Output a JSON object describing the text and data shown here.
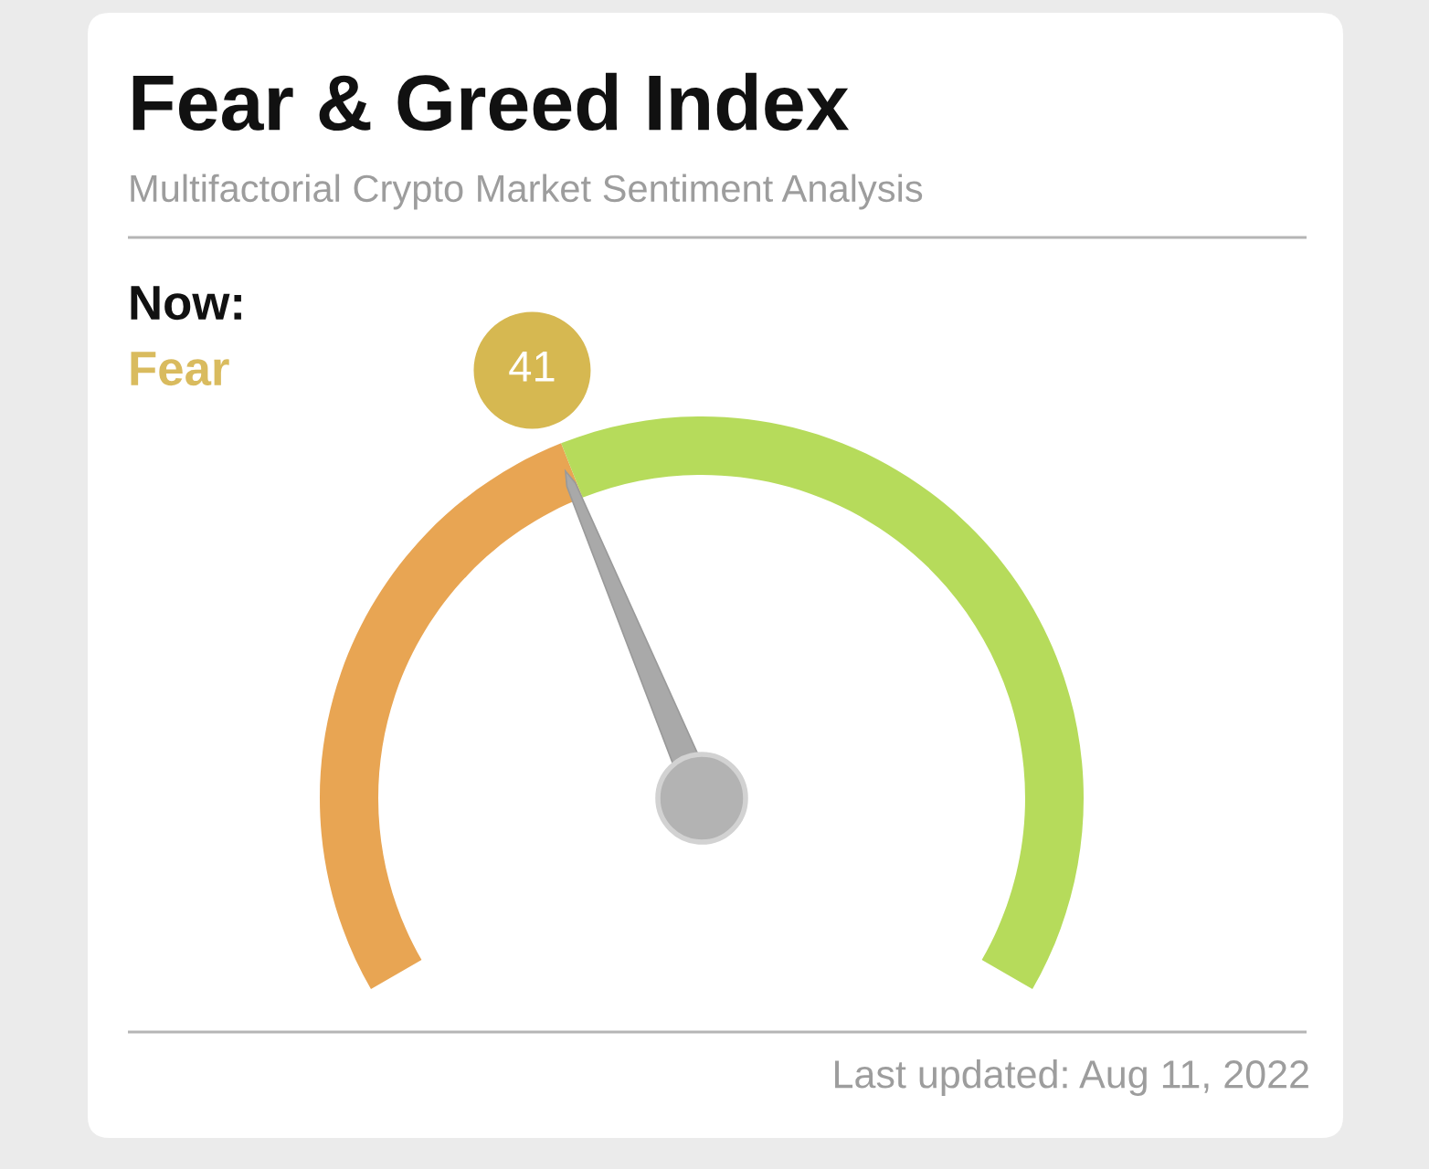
{
  "chart_data": {
    "type": "donut",
    "title": "Fear & Greed Index",
    "subtitle": "Multifactorial Crypto Market Sentiment Analysis",
    "categories": [
      "Fear",
      null
    ],
    "values": [
      41,
      59
    ],
    "colors": [
      "#e8a553",
      "#b6db5b"
    ],
    "value_labels": [
      "41",
      null
    ],
    "needle": "Fear",
    "annotations": [
      "Now:",
      "Last updated: Aug 11, 2022"
    ]
  }
}
